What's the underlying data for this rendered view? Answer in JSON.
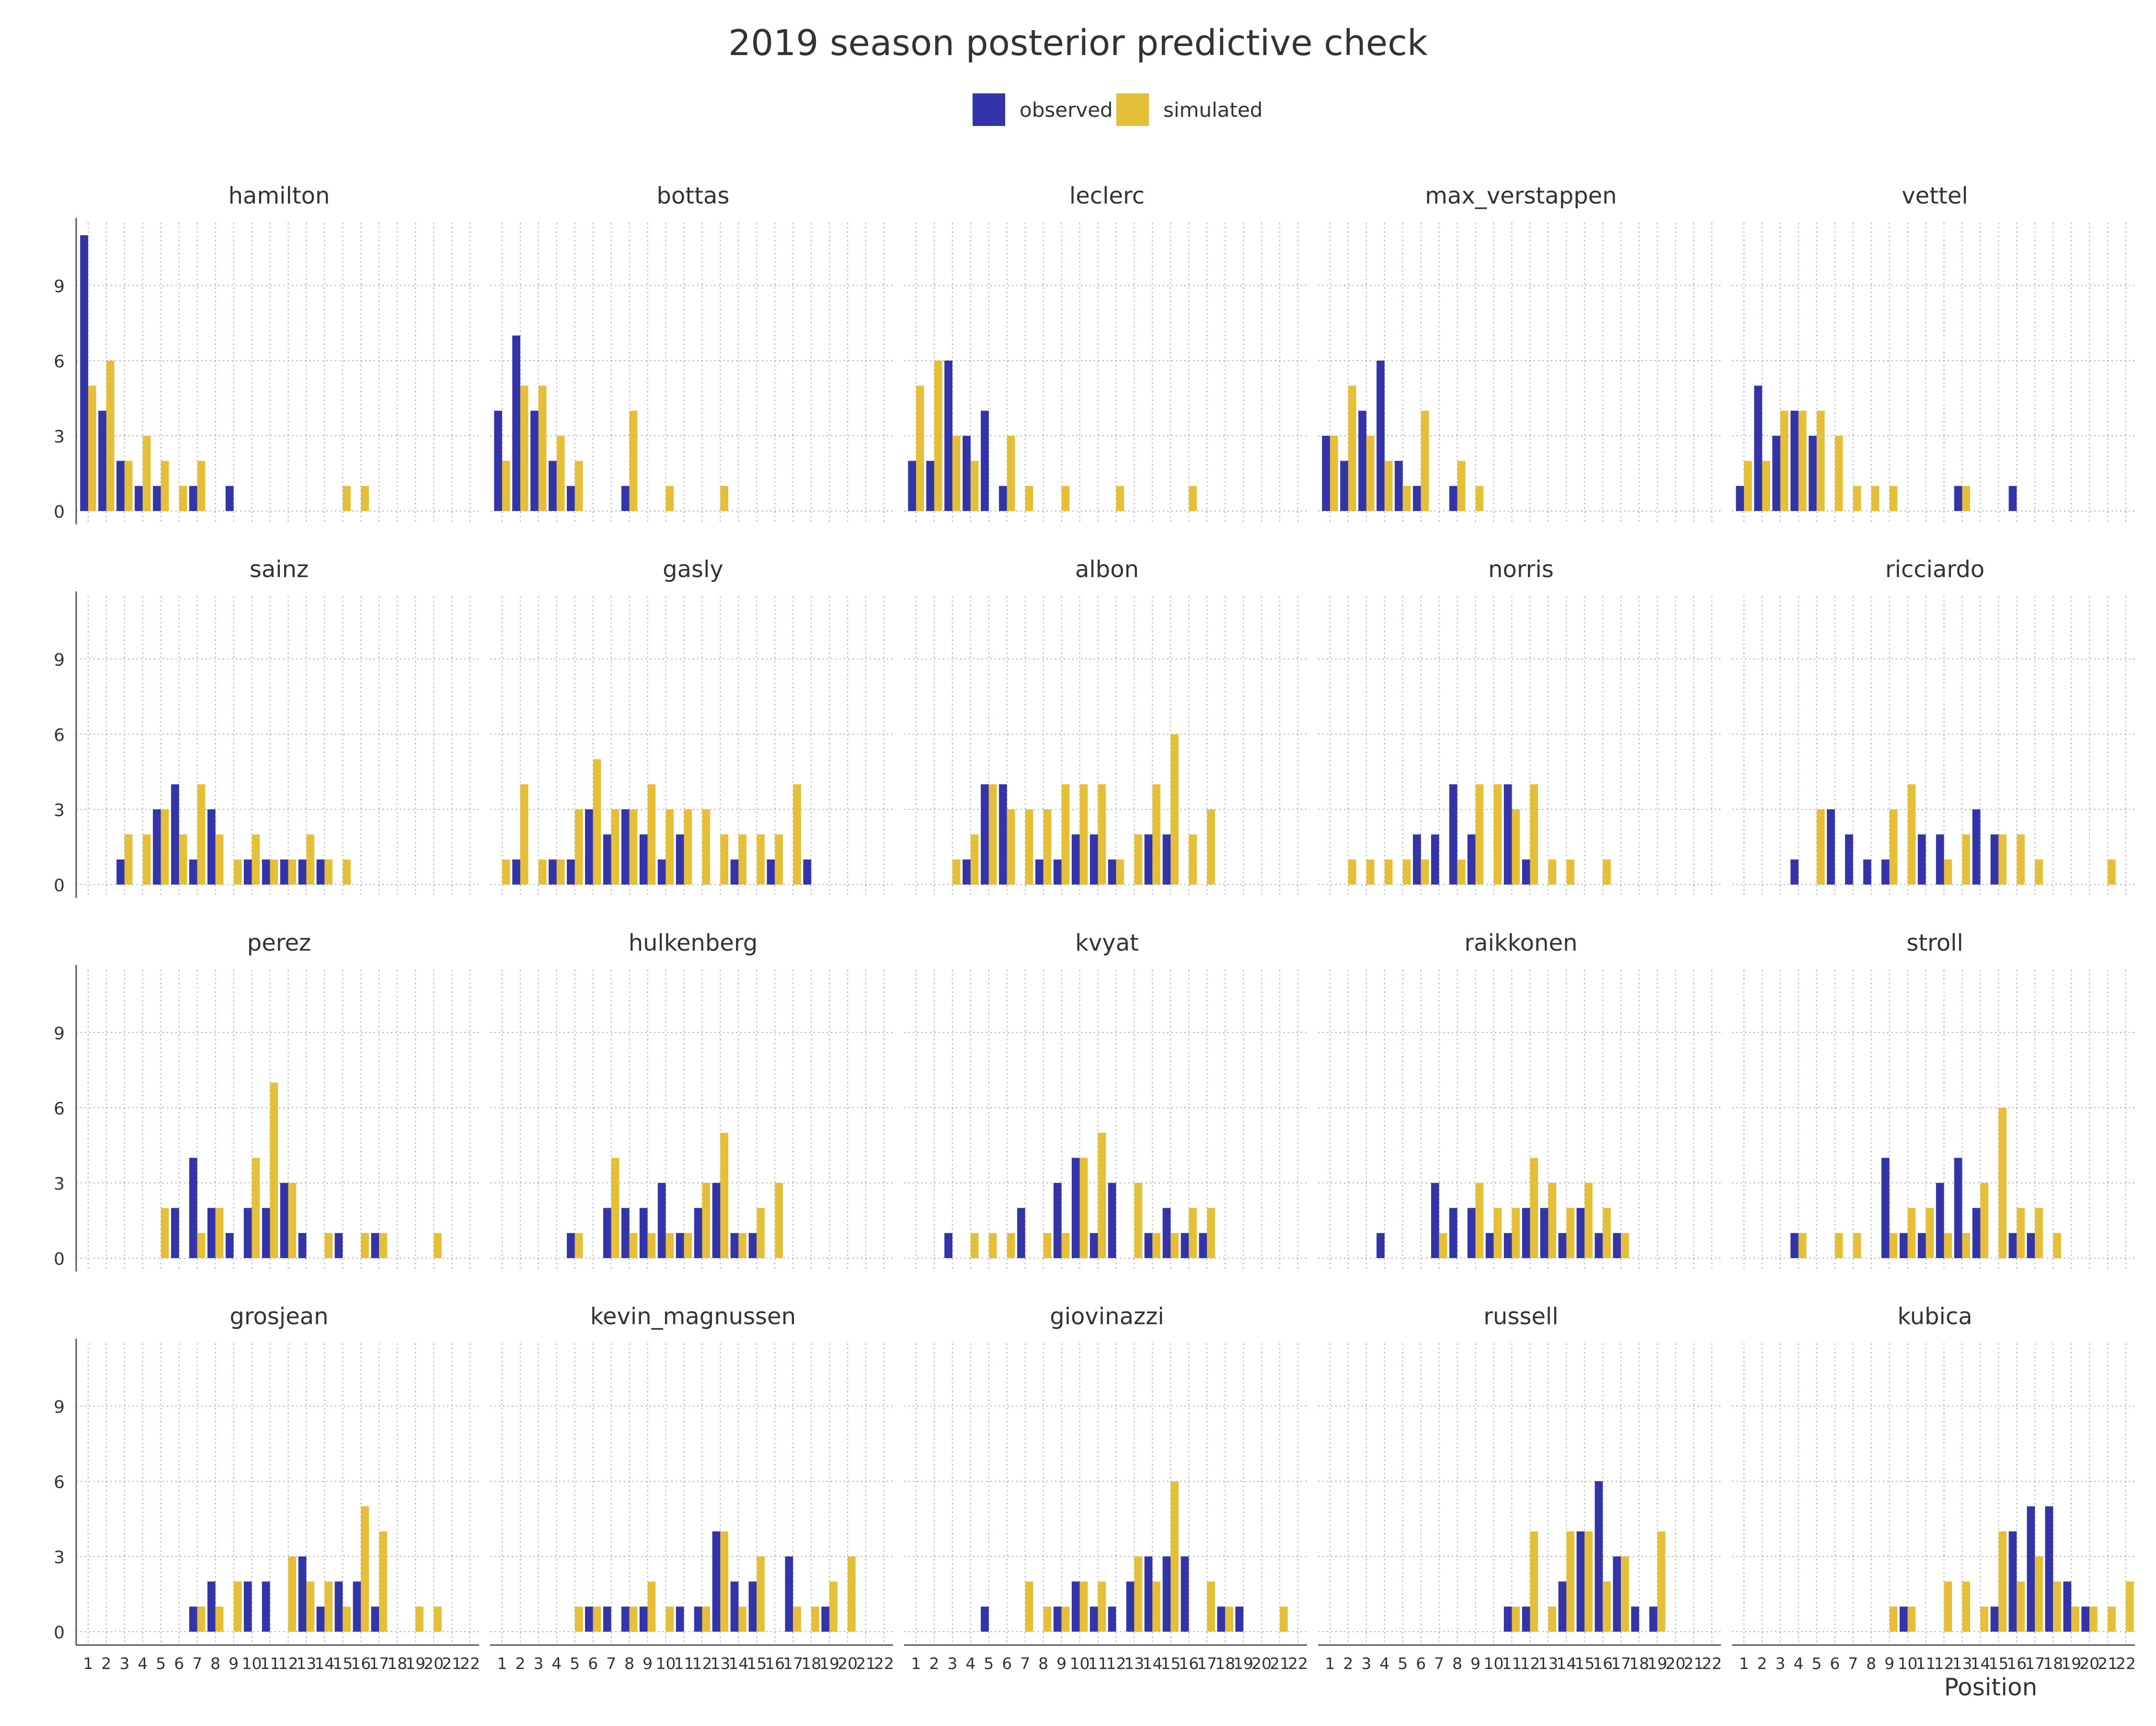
{
  "chart_data": {
    "type": "bar",
    "title": "2019 season posterior predictive check",
    "xlabel": "Position",
    "ylabel": "",
    "ylim": [
      0,
      11.5
    ],
    "yticks": [
      0,
      3,
      6,
      9
    ],
    "grid": true,
    "legend_placement": "top-center",
    "positions": [
      "1",
      "2",
      "3",
      "4",
      "5",
      "6",
      "7",
      "8",
      "9",
      "10",
      "11",
      "12",
      "13",
      "14",
      "15",
      "16",
      "17",
      "18",
      "19",
      "20",
      "21",
      "22"
    ],
    "series_names": [
      "observed",
      "simulated"
    ],
    "colors": {
      "observed": "#3333aa",
      "simulated": "#e6bf38",
      "grid": "#b0b0b0",
      "axis": "#555555"
    },
    "panels": [
      {
        "driver": "hamilton",
        "observed": [
          11,
          4,
          2,
          1,
          1,
          0,
          1,
          0,
          1,
          0,
          0,
          0,
          0,
          0,
          0,
          0,
          0,
          0,
          0,
          0,
          0,
          0
        ],
        "simulated": [
          5,
          6,
          2,
          3,
          2,
          1,
          2,
          0,
          0,
          0,
          0,
          0,
          0,
          0,
          1,
          1,
          0,
          0,
          0,
          0,
          0,
          0
        ]
      },
      {
        "driver": "bottas",
        "observed": [
          4,
          7,
          4,
          2,
          1,
          0,
          0,
          1,
          0,
          0,
          0,
          0,
          0,
          0,
          0,
          0,
          0,
          0,
          0,
          0,
          0,
          0
        ],
        "simulated": [
          2,
          5,
          5,
          3,
          2,
          0,
          0,
          4,
          0,
          1,
          0,
          0,
          1,
          0,
          0,
          0,
          0,
          0,
          0,
          0,
          0,
          0
        ]
      },
      {
        "driver": "leclerc",
        "observed": [
          2,
          2,
          6,
          3,
          4,
          1,
          0,
          0,
          0,
          0,
          0,
          0,
          0,
          0,
          0,
          0,
          0,
          0,
          0,
          0,
          0,
          0
        ],
        "simulated": [
          5,
          6,
          3,
          2,
          0,
          3,
          1,
          0,
          1,
          0,
          0,
          1,
          0,
          0,
          0,
          1,
          0,
          0,
          0,
          0,
          0,
          0
        ]
      },
      {
        "driver": "max_verstappen",
        "observed": [
          3,
          2,
          4,
          6,
          2,
          1,
          0,
          1,
          0,
          0,
          0,
          0,
          0,
          0,
          0,
          0,
          0,
          0,
          0,
          0,
          0,
          0
        ],
        "simulated": [
          3,
          5,
          3,
          2,
          1,
          4,
          0,
          2,
          1,
          0,
          0,
          0,
          0,
          0,
          0,
          0,
          0,
          0,
          0,
          0,
          0,
          0
        ]
      },
      {
        "driver": "vettel",
        "observed": [
          1,
          5,
          3,
          4,
          3,
          0,
          0,
          0,
          0,
          0,
          0,
          0,
          1,
          0,
          0,
          1,
          0,
          0,
          0,
          0,
          0,
          0
        ],
        "simulated": [
          2,
          2,
          4,
          4,
          4,
          3,
          1,
          1,
          1,
          0,
          0,
          0,
          1,
          0,
          0,
          0,
          0,
          0,
          0,
          0,
          0,
          0
        ]
      },
      {
        "driver": "sainz",
        "observed": [
          0,
          0,
          1,
          0,
          3,
          4,
          1,
          3,
          0,
          1,
          1,
          1,
          1,
          1,
          0,
          0,
          0,
          0,
          0,
          0,
          0,
          0
        ],
        "simulated": [
          0,
          0,
          2,
          2,
          3,
          2,
          4,
          2,
          1,
          2,
          1,
          1,
          2,
          1,
          1,
          0,
          0,
          0,
          0,
          0,
          0,
          0
        ]
      },
      {
        "driver": "gasly",
        "observed": [
          0,
          1,
          0,
          1,
          1,
          3,
          2,
          3,
          2,
          1,
          2,
          0,
          0,
          1,
          0,
          1,
          0,
          1,
          0,
          0,
          0,
          0
        ],
        "simulated": [
          1,
          4,
          1,
          1,
          3,
          5,
          3,
          3,
          4,
          3,
          3,
          3,
          2,
          2,
          2,
          2,
          4,
          0,
          0,
          0,
          0,
          0
        ]
      },
      {
        "driver": "albon",
        "observed": [
          0,
          0,
          0,
          1,
          4,
          4,
          0,
          1,
          1,
          2,
          2,
          1,
          0,
          2,
          2,
          0,
          0,
          0,
          0,
          0,
          0,
          0
        ],
        "simulated": [
          0,
          0,
          1,
          2,
          4,
          3,
          3,
          3,
          4,
          4,
          4,
          1,
          2,
          4,
          6,
          2,
          3,
          0,
          0,
          0,
          0,
          0
        ]
      },
      {
        "driver": "norris",
        "observed": [
          0,
          0,
          0,
          0,
          0,
          2,
          2,
          4,
          2,
          0,
          4,
          1,
          0,
          0,
          0,
          0,
          0,
          0,
          0,
          0,
          0,
          0
        ],
        "simulated": [
          0,
          1,
          1,
          1,
          1,
          1,
          0,
          1,
          4,
          4,
          3,
          4,
          1,
          1,
          0,
          1,
          0,
          0,
          0,
          0,
          0,
          0
        ]
      },
      {
        "driver": "ricciardo",
        "observed": [
          0,
          0,
          0,
          1,
          0,
          3,
          2,
          1,
          1,
          0,
          2,
          2,
          0,
          3,
          2,
          0,
          0,
          0,
          0,
          0,
          0,
          0
        ],
        "simulated": [
          0,
          0,
          0,
          0,
          3,
          0,
          0,
          0,
          3,
          4,
          0,
          1,
          2,
          0,
          2,
          2,
          1,
          0,
          0,
          0,
          1,
          0
        ]
      },
      {
        "driver": "perez",
        "observed": [
          0,
          0,
          0,
          0,
          0,
          2,
          4,
          2,
          1,
          2,
          2,
          3,
          1,
          0,
          1,
          0,
          1,
          0,
          0,
          0,
          0,
          0
        ],
        "simulated": [
          0,
          0,
          0,
          0,
          2,
          0,
          1,
          2,
          0,
          4,
          7,
          3,
          0,
          1,
          0,
          1,
          1,
          0,
          0,
          1,
          0,
          0
        ]
      },
      {
        "driver": "hulkenberg",
        "observed": [
          0,
          0,
          0,
          0,
          1,
          0,
          2,
          2,
          2,
          3,
          1,
          2,
          3,
          1,
          1,
          0,
          0,
          0,
          0,
          0,
          0,
          0
        ],
        "simulated": [
          0,
          0,
          0,
          0,
          1,
          0,
          4,
          1,
          1,
          1,
          1,
          3,
          5,
          1,
          2,
          3,
          0,
          0,
          0,
          0,
          0,
          0
        ]
      },
      {
        "driver": "kvyat",
        "observed": [
          0,
          0,
          1,
          0,
          0,
          0,
          2,
          0,
          3,
          4,
          1,
          3,
          0,
          1,
          2,
          1,
          1,
          0,
          0,
          0,
          0,
          0
        ],
        "simulated": [
          0,
          0,
          0,
          1,
          1,
          1,
          0,
          1,
          1,
          4,
          5,
          0,
          3,
          1,
          1,
          2,
          2,
          0,
          0,
          0,
          0,
          0
        ]
      },
      {
        "driver": "raikkonen",
        "observed": [
          0,
          0,
          0,
          1,
          0,
          0,
          3,
          2,
          2,
          1,
          1,
          2,
          2,
          1,
          2,
          1,
          1,
          0,
          0,
          0,
          0,
          0
        ],
        "simulated": [
          0,
          0,
          0,
          0,
          0,
          0,
          1,
          0,
          3,
          2,
          2,
          4,
          3,
          2,
          3,
          2,
          1,
          0,
          0,
          0,
          0,
          0
        ]
      },
      {
        "driver": "stroll",
        "observed": [
          0,
          0,
          0,
          1,
          0,
          0,
          0,
          0,
          4,
          1,
          1,
          3,
          4,
          2,
          0,
          1,
          1,
          0,
          0,
          0,
          0,
          0
        ],
        "simulated": [
          0,
          0,
          0,
          1,
          0,
          1,
          1,
          0,
          1,
          2,
          2,
          1,
          1,
          3,
          6,
          2,
          2,
          1,
          0,
          0,
          0,
          0
        ]
      },
      {
        "driver": "grosjean",
        "observed": [
          0,
          0,
          0,
          0,
          0,
          0,
          1,
          2,
          0,
          2,
          2,
          0,
          3,
          1,
          2,
          2,
          1,
          0,
          0,
          0,
          0,
          0
        ],
        "simulated": [
          0,
          0,
          0,
          0,
          0,
          0,
          1,
          1,
          2,
          0,
          0,
          3,
          2,
          2,
          1,
          5,
          4,
          0,
          1,
          1,
          0,
          0
        ]
      },
      {
        "driver": "kevin_magnussen",
        "observed": [
          0,
          0,
          0,
          0,
          0,
          1,
          1,
          1,
          1,
          0,
          1,
          1,
          4,
          2,
          2,
          0,
          3,
          0,
          1,
          0,
          0,
          0
        ],
        "simulated": [
          0,
          0,
          0,
          0,
          1,
          1,
          0,
          1,
          2,
          1,
          0,
          1,
          4,
          1,
          3,
          0,
          1,
          1,
          2,
          3,
          0,
          0
        ]
      },
      {
        "driver": "giovinazzi",
        "observed": [
          0,
          0,
          0,
          0,
          1,
          0,
          0,
          0,
          1,
          2,
          1,
          1,
          2,
          3,
          3,
          3,
          0,
          1,
          1,
          0,
          0,
          0
        ],
        "simulated": [
          0,
          0,
          0,
          0,
          0,
          0,
          2,
          1,
          1,
          2,
          2,
          0,
          3,
          2,
          6,
          0,
          2,
          1,
          0,
          0,
          1,
          0
        ]
      },
      {
        "driver": "russell",
        "observed": [
          0,
          0,
          0,
          0,
          0,
          0,
          0,
          0,
          0,
          0,
          1,
          1,
          0,
          2,
          4,
          6,
          3,
          1,
          1,
          0,
          0,
          0
        ],
        "simulated": [
          0,
          0,
          0,
          0,
          0,
          0,
          0,
          0,
          0,
          0,
          1,
          4,
          1,
          4,
          4,
          2,
          3,
          0,
          4,
          0,
          0,
          0
        ]
      },
      {
        "driver": "kubica",
        "observed": [
          0,
          0,
          0,
          0,
          0,
          0,
          0,
          0,
          0,
          1,
          0,
          0,
          0,
          0,
          1,
          4,
          5,
          5,
          2,
          1,
          0,
          0
        ],
        "simulated": [
          0,
          0,
          0,
          0,
          0,
          0,
          0,
          0,
          1,
          1,
          0,
          2,
          2,
          1,
          4,
          2,
          3,
          2,
          1,
          1,
          1,
          2
        ]
      }
    ]
  }
}
